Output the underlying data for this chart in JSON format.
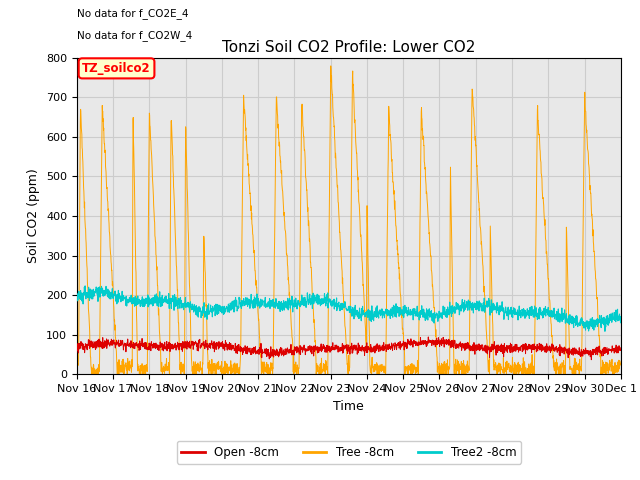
{
  "title": "Tonzi Soil CO2 Profile: Lower CO2",
  "ylabel": "Soil CO2 (ppm)",
  "xlabel": "Time",
  "annotations": [
    "No data for f_CO2E_4",
    "No data for f_CO2W_4"
  ],
  "legend_label_box": "TZ_soilco2",
  "ylim": [
    0,
    800
  ],
  "series": {
    "open": {
      "label": "Open -8cm",
      "color": "#dd0000"
    },
    "tree": {
      "label": "Tree -8cm",
      "color": "#ffa500"
    },
    "tree2": {
      "label": "Tree2 -8cm",
      "color": "#00cccc"
    }
  },
  "xtick_labels": [
    "Nov 16",
    "Nov 17",
    "Nov 18",
    "Nov 19",
    "Nov 20",
    "Nov 21",
    "Nov 22",
    "Nov 23",
    "Nov 24",
    "Nov 25",
    "Nov 26",
    "Nov 27",
    "Nov 28",
    "Nov 29",
    "Nov 30",
    "Dec 1"
  ],
  "grid_color": "#cccccc",
  "bg_color": "#e8e8e8",
  "plot_bg": "#ffffff",
  "title_fontsize": 11,
  "axis_fontsize": 9,
  "tick_fontsize": 8,
  "spike_times": [
    0.1,
    0.7,
    1.55,
    2.0,
    2.6,
    3.0,
    3.5,
    4.6,
    5.5,
    6.2,
    7.0,
    7.6,
    8.0,
    8.6,
    9.5,
    10.3,
    10.9,
    11.4,
    12.7,
    13.5,
    14.0
  ],
  "spike_peaks": [
    680,
    680,
    670,
    665,
    660,
    640,
    360,
    700,
    700,
    690,
    780,
    760,
    450,
    660,
    670,
    530,
    730,
    380,
    670,
    380,
    700
  ],
  "spike_widths": [
    0.35,
    0.5,
    0.15,
    0.4,
    0.3,
    0.2,
    0.15,
    0.6,
    0.6,
    0.5,
    0.55,
    0.5,
    0.1,
    0.55,
    0.55,
    0.12,
    0.55,
    0.12,
    0.55,
    0.12,
    0.55
  ]
}
